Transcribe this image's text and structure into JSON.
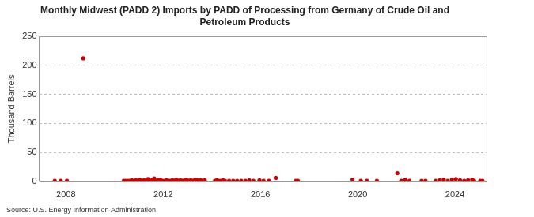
{
  "chart_data": {
    "type": "scatter",
    "title": [
      "Monthly Midwest (PADD 2) Imports by PADD of Processing from Germany of Crude Oil and",
      "Petroleum Products"
    ],
    "y_label": "Thousand Barrels",
    "source": "Source: U.S. Energy Information Administration",
    "x": [
      2007.54,
      2007.79,
      2008.04,
      2008.71,
      2010.38,
      2010.46,
      2010.54,
      2010.63,
      2010.71,
      2010.79,
      2010.88,
      2010.96,
      2011.04,
      2011.13,
      2011.21,
      2011.29,
      2011.38,
      2011.46,
      2011.54,
      2011.63,
      2011.71,
      2011.79,
      2011.88,
      2011.96,
      2012.04,
      2012.13,
      2012.21,
      2012.29,
      2012.38,
      2012.46,
      2012.54,
      2012.63,
      2012.71,
      2012.79,
      2012.88,
      2012.96,
      2013.04,
      2013.13,
      2013.21,
      2013.29,
      2013.38,
      2013.46,
      2013.54,
      2013.63,
      2013.71,
      2014.13,
      2014.21,
      2014.29,
      2014.38,
      2014.46,
      2014.54,
      2014.71,
      2014.88,
      2015.04,
      2015.21,
      2015.38,
      2015.54,
      2015.71,
      2015.96,
      2016.13,
      2016.35,
      2016.63,
      2017.46,
      2017.54,
      2019.79,
      2020.13,
      2020.38,
      2020.79,
      2021.63,
      2021.79,
      2021.96,
      2022.13,
      2022.63,
      2022.79,
      2023.21,
      2023.38,
      2023.54,
      2023.71,
      2023.88,
      2024.04,
      2024.21,
      2024.38,
      2024.54,
      2024.71,
      2024.79,
      2025.04,
      2025.13
    ],
    "series": [
      {
        "name": "Germany",
        "color": "#cc0000",
        "marker": "circle",
        "values": [
          1,
          1,
          1,
          212,
          1,
          1,
          1,
          1,
          2,
          1,
          2,
          1,
          3,
          1,
          2,
          1,
          4,
          1,
          2,
          5,
          1,
          2,
          3,
          1,
          1,
          2,
          1,
          1,
          2,
          1,
          3,
          1,
          2,
          1,
          2,
          3,
          1,
          2,
          1,
          2,
          3,
          1,
          2,
          1,
          2,
          1,
          2,
          1,
          1,
          2,
          1,
          1,
          1,
          1,
          1,
          1,
          2,
          1,
          2,
          1,
          1,
          6,
          1,
          1,
          3,
          1,
          1,
          1,
          14,
          1,
          3,
          1,
          1,
          1,
          1,
          2,
          3,
          1,
          3,
          4,
          2,
          1,
          2,
          3,
          1,
          1,
          1
        ]
      }
    ],
    "xlim": [
      2006.9,
      2025.3
    ],
    "xticks": [
      2008,
      2012,
      2016,
      2020,
      2024
    ],
    "ylim": [
      0,
      250
    ],
    "yticks": [
      0,
      50,
      100,
      150,
      200,
      250
    ],
    "grid": true
  }
}
